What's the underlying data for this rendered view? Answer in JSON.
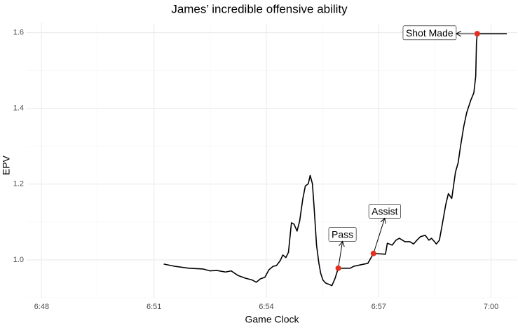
{
  "chart_data": {
    "type": "line",
    "title": "James’ incredible offensive ability",
    "x_label": "Game Clock",
    "y_label": "EPV",
    "x": [
      411.26,
      411.56,
      411.93,
      412.31,
      412.49,
      412.68,
      412.91,
      413.06,
      413.24,
      413.43,
      413.62,
      413.73,
      413.84,
      413.96,
      414.07,
      414.18,
      414.27,
      414.37,
      414.44,
      414.52,
      414.59,
      414.67,
      414.74,
      414.82,
      414.89,
      414.97,
      415.04,
      415.12,
      415.17,
      415.23,
      415.28,
      415.34,
      415.4,
      415.45,
      415.51,
      415.58,
      415.68,
      415.75,
      415.83,
      415.92,
      416.24,
      416.33,
      416.52,
      416.71,
      416.86,
      417.18,
      417.23,
      417.36,
      417.46,
      417.55,
      417.7,
      417.83,
      417.93,
      418.02,
      418.11,
      418.24,
      418.34,
      418.41,
      418.49,
      418.54,
      418.62,
      418.69,
      418.79,
      418.86,
      418.95,
      419.05,
      419.12,
      419.18,
      419.27,
      419.35,
      419.46,
      419.54,
      419.59,
      419.61,
      419.63,
      420.42
    ],
    "series": [
      {
        "color": "#000000",
        "values": [
          0.989,
          0.983,
          0.978,
          0.976,
          0.971,
          0.972,
          0.968,
          0.971,
          0.959,
          0.952,
          0.947,
          0.941,
          0.95,
          0.954,
          0.974,
          0.983,
          0.985,
          0.998,
          1.013,
          1.006,
          1.02,
          1.098,
          1.094,
          1.076,
          1.103,
          1.159,
          1.195,
          1.201,
          1.223,
          1.201,
          1.131,
          1.039,
          0.993,
          0.965,
          0.947,
          0.939,
          0.935,
          0.932,
          0.95,
          0.978,
          0.978,
          0.983,
          0.987,
          0.991,
          1.017,
          1.015,
          1.044,
          1.039,
          1.052,
          1.057,
          1.048,
          1.048,
          1.042,
          1.052,
          1.061,
          1.065,
          1.052,
          1.057,
          1.048,
          1.042,
          1.052,
          1.09,
          1.146,
          1.175,
          1.162,
          1.232,
          1.256,
          1.297,
          1.352,
          1.389,
          1.422,
          1.441,
          1.485,
          1.573,
          1.597,
          1.597
        ]
      }
    ],
    "annotations": [
      {
        "text": "Pass",
        "x": 415.92,
        "y": 0.978
      },
      {
        "text": "Assist",
        "x": 416.86,
        "y": 1.017
      },
      {
        "text": "Shot Made",
        "x": 419.63,
        "y": 1.597
      }
    ],
    "point_color": "#e3301d",
    "xlim": [
      407.6,
      420.7
    ],
    "ylim": [
      0.9,
      1.625
    ],
    "xticks": [
      {
        "value": 408,
        "label": "6:48"
      },
      {
        "value": 411,
        "label": "6:51"
      },
      {
        "value": 414,
        "label": "6:54"
      },
      {
        "value": 417,
        "label": "6:57"
      },
      {
        "value": 420,
        "label": "7:00"
      }
    ],
    "yticks": [
      {
        "value": 1.0,
        "label": "1.0"
      },
      {
        "value": 1.2,
        "label": "1.2"
      },
      {
        "value": 1.4,
        "label": "1.4"
      },
      {
        "value": 1.6,
        "label": "1.6"
      }
    ],
    "x_minor_ticks": [
      409.5,
      412.5,
      415.5,
      418.5
    ],
    "y_minor_ticks": [
      0.9,
      1.1,
      1.3,
      1.5
    ],
    "grid": true
  }
}
